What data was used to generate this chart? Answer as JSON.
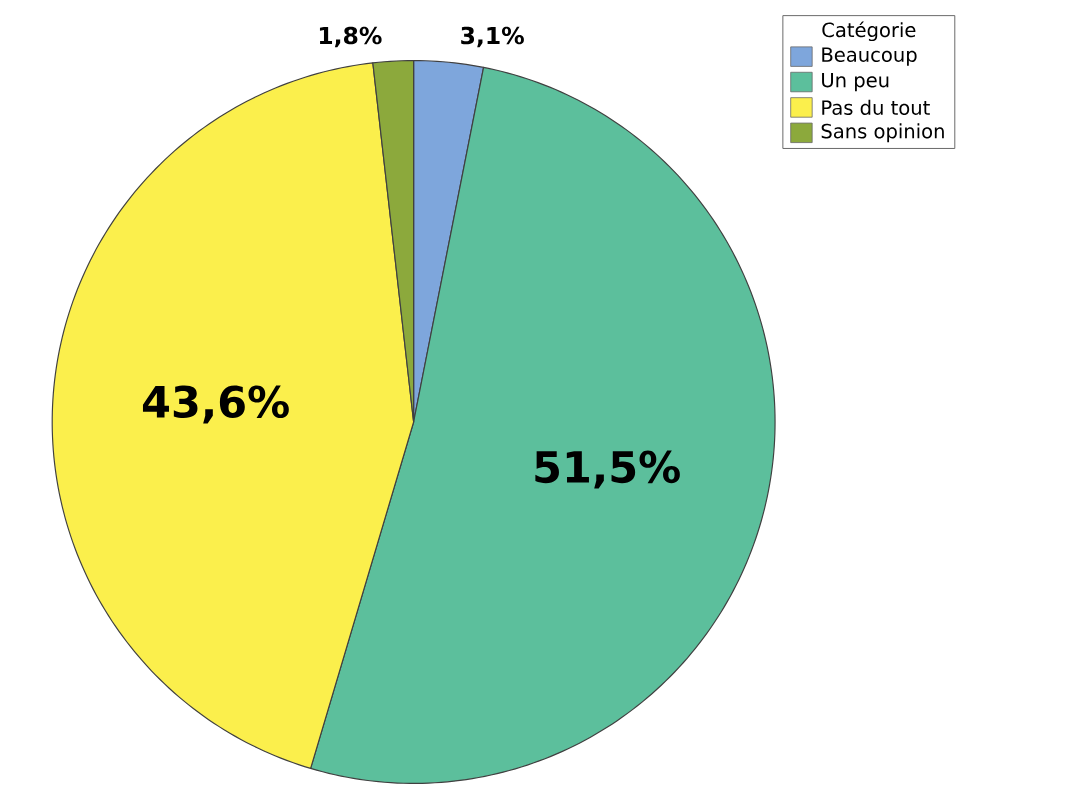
{
  "chart_data": {
    "type": "pie",
    "legend_title": "Catégorie",
    "categories": [
      "Beaucoup",
      "Un peu",
      "Pas du tout",
      "Sans opinion"
    ],
    "values": [
      3.1,
      51.5,
      43.6,
      1.8
    ],
    "value_labels": [
      "3,1%",
      "51,5%",
      "43,6%",
      "1,8%"
    ],
    "colors": [
      "#7ea6dc",
      "#5cbf9c",
      "#fbef4c",
      "#8ca93c"
    ],
    "legend": "top right"
  }
}
